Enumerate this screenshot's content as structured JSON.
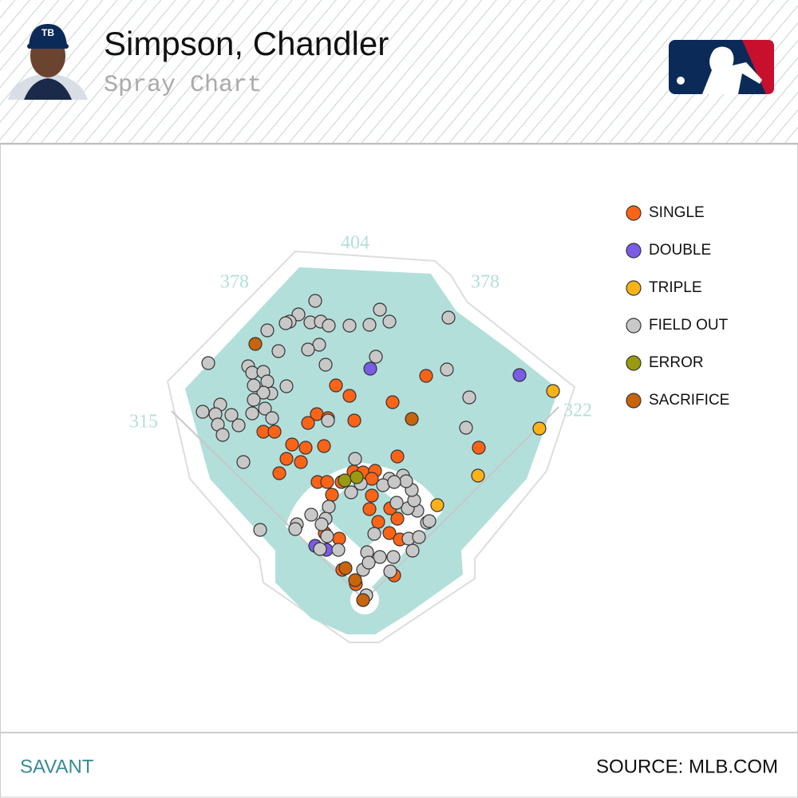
{
  "header": {
    "title": "Simpson, Chandler",
    "subtitle": "Spray Chart"
  },
  "chart_data": {
    "type": "scatter",
    "xlim": [
      0,
      250
    ],
    "ylim": [
      250,
      0
    ],
    "wall_distances": [
      315,
      378,
      404,
      378,
      322
    ],
    "series": [
      {
        "name": "SINGLE",
        "color": "#fb6416",
        "x": [
          110.5,
          119,
          146,
          167,
          122,
          98.5,
          93,
          105.5,
          65,
          72,
          83,
          91.5,
          103,
          79.5,
          88.5,
          75,
          149,
          200,
          99,
          105,
          108,
          121.5,
          127.5,
          135,
          131.5,
          133,
          137,
          149,
          144,
          150.5,
          103.5,
          112.5,
          114.5,
          123,
          147,
          133,
          144.5,
          114
        ],
        "values": [
          96.5,
          103,
          107,
          90.5,
          118.5,
          114.5,
          120,
          117,
          125.5,
          125.5,
          133.5,
          135.5,
          134.5,
          142.5,
          144.5,
          151.5,
          141,
          135.5,
          157,
          157,
          165,
          150.5,
          151,
          150,
          174,
          165.5,
          182,
          180,
          189,
          193,
          189,
          192.5,
          212,
          221,
          215.5,
          155,
          173.5,
          157
        ]
      },
      {
        "name": "DOUBLE",
        "color": "#7b5ce6",
        "x": [
          132,
          225.5,
          97.5,
          104.5
        ],
        "values": [
          86,
          90,
          197,
          199.5
        ]
      },
      {
        "name": "TRIPLE",
        "color": "#fbb216",
        "x": [
          246.5,
          238,
          199.5,
          174
        ],
        "values": [
          100,
          123.5,
          153,
          171.5
        ]
      },
      {
        "name": "FIELD OUT",
        "color": "#c8c8c8",
        "x": [
          97.5,
          87,
          81.5,
          94.5,
          101,
          106,
          79,
          67.5,
          119,
          131.5,
          138,
          144,
          181,
          100,
          93,
          74.5,
          135.5,
          30.5,
          55.5,
          58,
          65,
          67.5,
          104,
          180,
          79.5,
          70,
          65,
          59,
          59,
          38,
          27,
          35,
          45,
          36.5,
          49.5,
          58,
          66,
          70.5,
          39.5,
          105.5,
          194,
          192,
          52.5,
          122.5,
          63,
          152.5,
          144,
          140,
          126,
          120,
          106,
          95,
          86,
          85,
          104,
          101.5,
          105,
          100.5,
          112,
          130,
          138,
          146.5,
          158.5,
          156,
          162.5,
          167.5,
          169,
          161.5,
          155.5,
          159.5,
          158,
          154.5,
          147,
          148.5,
          127.5,
          131,
          144.5,
          129.5,
          134.5
        ],
        "values": [
          43.5,
          52,
          56.5,
          57,
          56.5,
          59,
          57.5,
          62,
          59,
          58.5,
          49,
          56.5,
          54,
          71,
          74,
          75,
          78.5,
          82.5,
          84.5,
          88.5,
          88,
          94,
          83.5,
          86.5,
          97,
          101.5,
          101,
          96.5,
          105.5,
          108.5,
          113,
          114.5,
          115,
          121,
          121.5,
          114,
          111,
          117,
          127.5,
          118.5,
          104,
          123,
          144.5,
          142.5,
          187,
          153,
          155,
          159,
          158,
          163.5,
          172.5,
          177.5,
          183.5,
          186.5,
          180,
          183.5,
          191,
          199,
          199.5,
          201,
          204,
          204,
          200,
          192.5,
          191.5,
          182.5,
          181.5,
          175,
          173.5,
          168.5,
          162,
          156.5,
          157,
          170,
          212,
          207.5,
          213,
          228,
          189.5
        ]
      },
      {
        "name": "ERROR",
        "color": "#9a9a10",
        "x": [
          116,
          123.5
        ],
        "values": [
          156,
          154
        ]
      },
      {
        "name": "SACRIFICE",
        "color": "#c8640c",
        "x": [
          60,
          158,
          116.5,
          127.5,
          122.5
        ],
        "values": [
          70.5,
          117.5,
          211,
          231,
          218.5
        ]
      }
    ]
  },
  "footer": {
    "left": "SAVANT",
    "right": "SOURCE: MLB.COM"
  }
}
